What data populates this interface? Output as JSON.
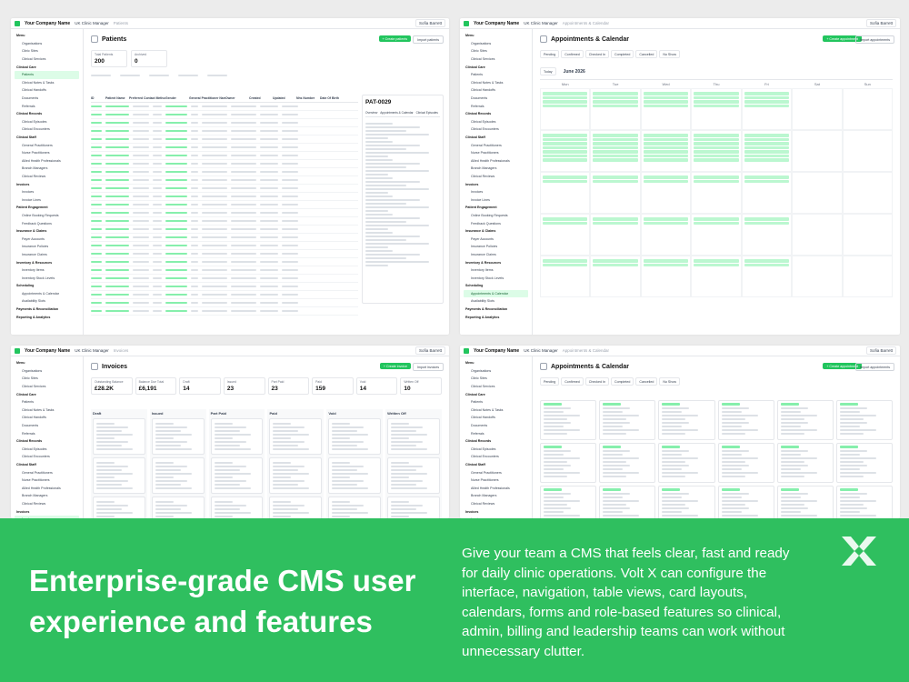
{
  "app": {
    "company": "Your Company Name",
    "role": "UK Clinic Manager",
    "user": "Sofia Barrett"
  },
  "menu": {
    "title": "Menu",
    "items": [
      "Organisations",
      "Clinic Sites",
      "Clinical Services"
    ],
    "sections": [
      {
        "title": "Clinical Care",
        "items": [
          "Patients",
          "Clinical Notes & Tasks",
          "Clinical Handoffs",
          "Documents",
          "Referrals"
        ]
      },
      {
        "title": "Clinical Records",
        "items": [
          "Clinical Episodes",
          "Clinical Encounters"
        ]
      },
      {
        "title": "Clinical Staff",
        "items": [
          "General Practitioners",
          "Nurse Practitioners",
          "Allied Health Professionals",
          "Branch Managers",
          "Clinical Reviews"
        ]
      },
      {
        "title": "Invoices",
        "items": [
          "Invoices",
          "Invoice Lines"
        ]
      },
      {
        "title": "Patient Engagement",
        "items": [
          "Online Booking Requests",
          "Feedback Questions"
        ]
      },
      {
        "title": "Insurance & Claims",
        "items": [
          "Payer Accounts",
          "Insurance Policies",
          "Insurance Claims"
        ]
      },
      {
        "title": "Inventory & Resources",
        "items": [
          "Inventory Items",
          "Inventory Stock Levels"
        ]
      },
      {
        "title": "Scheduling",
        "items": [
          "Appointments & Calendar",
          "Availability Slots"
        ]
      },
      {
        "title": "Payments & Reconciliation",
        "items": []
      },
      {
        "title": "Reporting & Analytics",
        "items": []
      }
    ]
  },
  "screens": [
    {
      "title": "Patients",
      "primary_action": "+ Create patients",
      "secondary_action": "Import patients",
      "stats": [
        {
          "label": "Total Patients",
          "value": "200"
        },
        {
          "label": "Archived",
          "value": "0"
        }
      ],
      "columns": [
        "ID",
        "Patient Name",
        "Preferred Contact Method",
        "Gender",
        "General Practitioner Name",
        "Owner",
        "Created",
        "Updated",
        "Nhs Number",
        "Date Of Birth"
      ],
      "detail": {
        "title": "PAT-0029",
        "tabs": [
          "Overview",
          "Appointments & Calendar",
          "Clinical Episodes"
        ]
      }
    },
    {
      "title": "Appointments & Calendar",
      "primary_action": "+ Create appointment",
      "secondary_action": "Import appointments",
      "statuses": [
        "Pending",
        "Confirmed",
        "Checked In",
        "Completed",
        "Cancelled",
        "No Show"
      ],
      "toolbar": "Today",
      "month": "June 2026",
      "weekdays": [
        "Mon",
        "Tue",
        "Wed",
        "Thu",
        "Fri",
        "Sat",
        "Sun"
      ]
    },
    {
      "title": "Invoices",
      "primary_action": "+ Create invoice",
      "secondary_action": "Import invoices",
      "stats": [
        {
          "label": "Outstanding Balance",
          "value": "£28.2K"
        },
        {
          "label": "Balance Due Total",
          "value": "£6,191"
        },
        {
          "label": "Draft",
          "value": "14"
        },
        {
          "label": "Issued",
          "value": "23"
        },
        {
          "label": "Part Paid",
          "value": "23"
        },
        {
          "label": "Paid",
          "value": "159"
        },
        {
          "label": "Void",
          "value": "14"
        },
        {
          "label": "Written Off",
          "value": "10"
        }
      ],
      "columns": [
        "Draft",
        "Issued",
        "Part Paid",
        "Paid",
        "Void",
        "Written Off"
      ]
    },
    {
      "title": "Appointments & Calendar",
      "primary_action": "+ Create appointment",
      "secondary_action": "Import appointments",
      "statuses": [
        "Pending",
        "Confirmed",
        "Checked In",
        "Completed",
        "Cancelled",
        "No Show"
      ]
    }
  ],
  "banner": {
    "heading": "Enterprise-grade CMS user experience and features",
    "body": "Give your team a CMS that feels clear, fast and ready for daily clinic operations. Volt X can configure the interface, navigation, table views, card layouts, calendars, forms and role-based features so clinical, admin, billing and leadership teams can work without unnecessary clutter."
  }
}
